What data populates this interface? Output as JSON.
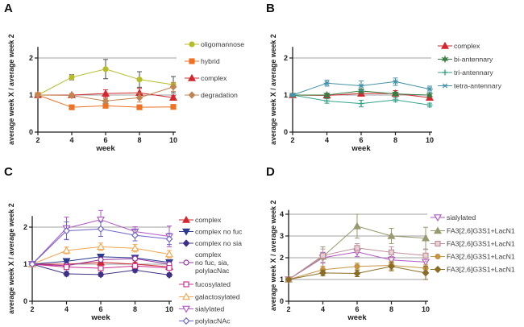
{
  "chart_data": [
    {
      "panel": "A",
      "type": "line",
      "xlabel": "week",
      "ylabel": "average week X / average week 2",
      "x": [
        2,
        4,
        6,
        8,
        10
      ],
      "yticks": [
        0,
        1,
        2
      ],
      "ylim": [
        0,
        2.3
      ],
      "gridline_values": [
        1,
        2
      ],
      "legend_position": "right",
      "series": [
        {
          "name": "oligomannose",
          "marker": "circle",
          "open": false,
          "color": "#b5bd28",
          "err_color": "#4d4d4d",
          "values": [
            1.0,
            1.48,
            1.7,
            1.42,
            1.28
          ],
          "errors": [
            0.03,
            0.07,
            0.26,
            0.21,
            0.22
          ]
        },
        {
          "name": "hybrid",
          "marker": "square",
          "open": false,
          "color": "#ee7125",
          "values": [
            1.0,
            0.67,
            0.71,
            0.67,
            0.68
          ],
          "errors": [
            0.02,
            0.03,
            0.04,
            0.03,
            0.03
          ]
        },
        {
          "name": "complex",
          "marker": "triangle-up",
          "open": false,
          "color": "#d4272e",
          "values": [
            1.0,
            1.0,
            1.04,
            1.06,
            0.93
          ],
          "errors": [
            0.02,
            0.04,
            0.1,
            0.12,
            0.05
          ]
        },
        {
          "name": "degradation",
          "marker": "diamond",
          "open": false,
          "color": "#bf8654",
          "values": [
            1.0,
            0.99,
            0.84,
            0.93,
            1.22
          ],
          "errors": [
            0.02,
            0.05,
            0.06,
            0.12,
            0.12
          ]
        }
      ]
    },
    {
      "panel": "B",
      "type": "line",
      "xlabel": "week",
      "ylabel": "average week X / average week 2",
      "x": [
        2,
        4,
        6,
        8,
        10
      ],
      "yticks": [
        0,
        1,
        2
      ],
      "ylim": [
        0,
        2.3
      ],
      "gridline_values": [
        1,
        2
      ],
      "legend_position": "right",
      "series": [
        {
          "name": "complex",
          "marker": "triangle-up",
          "open": false,
          "color": "#d4272e",
          "values": [
            1.0,
            0.99,
            1.04,
            1.04,
            0.93
          ],
          "errors": [
            0.02,
            0.05,
            0.07,
            0.08,
            0.05
          ]
        },
        {
          "name": "bi-antennary",
          "marker": "star",
          "open": false,
          "color": "#3a7d44",
          "values": [
            1.0,
            1.0,
            1.11,
            1.03,
            1.0
          ],
          "errors": [
            0.02,
            0.05,
            0.06,
            0.05,
            0.04
          ]
        },
        {
          "name": "tri-antennary",
          "marker": "plus",
          "open": false,
          "color": "#35a38a",
          "values": [
            1.0,
            0.84,
            0.77,
            0.87,
            0.73
          ],
          "errors": [
            0.02,
            0.06,
            0.09,
            0.05,
            0.05
          ]
        },
        {
          "name": "tetra-antennary",
          "marker": "xstar",
          "open": false,
          "color": "#4692a8",
          "values": [
            1.0,
            1.32,
            1.25,
            1.36,
            1.16
          ],
          "errors": [
            0.03,
            0.08,
            0.13,
            0.1,
            0.08
          ]
        }
      ]
    },
    {
      "panel": "C",
      "type": "line",
      "xlabel": "week",
      "ylabel": "average week X / average week 2",
      "x": [
        2,
        4,
        6,
        8,
        10
      ],
      "yticks": [
        0,
        1,
        2
      ],
      "ylim": [
        0,
        2.3
      ],
      "gridline_values": [
        1,
        2
      ],
      "legend_position": "right",
      "series": [
        {
          "name": "complex",
          "marker": "triangle-up",
          "open": false,
          "color": "#d4272e",
          "values": [
            1.0,
            1.0,
            1.05,
            1.0,
            0.93
          ],
          "errors": [
            0.02,
            0.05,
            0.06,
            0.05,
            0.05
          ]
        },
        {
          "name": "complex no fuc",
          "marker": "triangle-down",
          "open": false,
          "color": "#2b3a8f",
          "values": [
            1.0,
            1.08,
            1.2,
            1.17,
            1.05
          ],
          "errors": [
            0.02,
            0.05,
            0.05,
            0.05,
            0.06
          ]
        },
        {
          "name": "complex no sia",
          "marker": "diamond",
          "open": false,
          "color": "#3f2f86",
          "values": [
            1.0,
            0.74,
            0.72,
            0.84,
            0.71
          ],
          "errors": [
            0.02,
            0.06,
            0.05,
            0.06,
            0.05
          ]
        },
        {
          "name": "complex no fuc, sia, polylacNac",
          "legend_lines": [
            "complex",
            "no fuc, sia,",
            "polylacNac"
          ],
          "marker": "circle",
          "open": true,
          "color": "#9333a0",
          "values": [
            1.0,
            0.96,
            1.12,
            1.15,
            1.0
          ],
          "errors": [
            0.02,
            0.05,
            0.06,
            0.05,
            0.06
          ]
        },
        {
          "name": "fucosylated",
          "marker": "square",
          "open": true,
          "color": "#cc2d90",
          "values": [
            1.0,
            0.92,
            0.89,
            0.95,
            0.9
          ],
          "errors": [
            0.02,
            0.05,
            0.05,
            0.05,
            0.05
          ]
        },
        {
          "name": "galactosylated",
          "marker": "triangle-up",
          "open": true,
          "color": "#f2a64e",
          "values": [
            1.0,
            1.37,
            1.47,
            1.43,
            1.27
          ],
          "errors": [
            0.03,
            0.09,
            0.1,
            0.1,
            0.1
          ]
        },
        {
          "name": "sialylated",
          "marker": "triangle-down",
          "open": true,
          "color": "#b158c6",
          "values": [
            1.0,
            1.97,
            2.2,
            1.88,
            1.75
          ],
          "errors": [
            0.03,
            0.3,
            0.25,
            0.13,
            0.28
          ]
        },
        {
          "name": "polylacNAc",
          "marker": "diamond",
          "open": true,
          "color": "#6a63c9",
          "values": [
            1.0,
            1.9,
            1.95,
            1.78,
            1.68
          ],
          "errors": [
            0.03,
            0.24,
            0.2,
            0.15,
            0.15
          ]
        }
      ]
    },
    {
      "panel": "D",
      "type": "line",
      "xlabel": "week",
      "ylabel": "average week X / average week 2",
      "x": [
        2,
        4,
        6,
        8,
        10
      ],
      "yticks": [
        0,
        1,
        2,
        3,
        4
      ],
      "ylim": [
        0,
        4.2
      ],
      "gridline_values": [
        1,
        2,
        3,
        4
      ],
      "legend_position": "right",
      "series": [
        {
          "name": "sialylated",
          "marker": "triangle-down",
          "open": true,
          "color": "#b158c6",
          "values": [
            1.0,
            2.0,
            2.27,
            1.9,
            1.8
          ],
          "errors": [
            0.04,
            0.25,
            0.22,
            0.15,
            0.2
          ]
        },
        {
          "name": "FA3[2,6]G3S1+LacN1",
          "marker": "triangle-up",
          "open": false,
          "color": "#99996f",
          "values": [
            1.0,
            2.05,
            3.45,
            3.0,
            2.9
          ],
          "errors": [
            0.05,
            0.45,
            0.55,
            0.35,
            0.5
          ]
        },
        {
          "name": "FA3[2,6]G3S1+LacN1",
          "marker": "square",
          "open": true,
          "inner": "#e7d2d6",
          "color": "#c08f98",
          "values": [
            1.0,
            2.1,
            2.45,
            2.25,
            2.1
          ],
          "errors": [
            0.05,
            0.3,
            0.2,
            0.25,
            0.28
          ]
        },
        {
          "name": "FA3[2,6]G3S1+LacN1",
          "marker": "circle",
          "open": false,
          "color": "#c79447",
          "values": [
            1.0,
            1.45,
            1.6,
            1.65,
            1.52
          ],
          "errors": [
            0.03,
            0.15,
            0.15,
            0.2,
            0.15
          ]
        },
        {
          "name": "FA3[2,6]G3S1+LacN1",
          "marker": "diamond",
          "open": false,
          "color": "#8a6d25",
          "values": [
            1.0,
            1.3,
            1.28,
            1.6,
            1.3
          ],
          "errors": [
            0.03,
            0.13,
            0.15,
            0.2,
            0.3
          ]
        }
      ]
    }
  ]
}
